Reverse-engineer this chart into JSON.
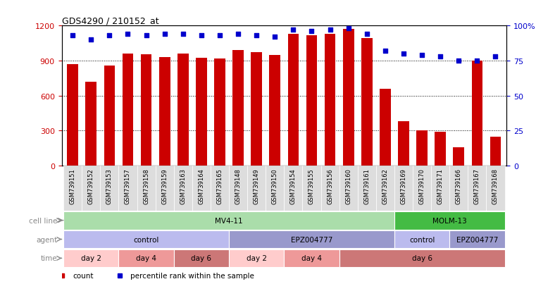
{
  "title": "GDS4290 / 210152_at",
  "samples": [
    "GSM739151",
    "GSM739152",
    "GSM739153",
    "GSM739157",
    "GSM739158",
    "GSM739159",
    "GSM739163",
    "GSM739164",
    "GSM739165",
    "GSM739148",
    "GSM739149",
    "GSM739150",
    "GSM739154",
    "GSM739155",
    "GSM739156",
    "GSM739160",
    "GSM739161",
    "GSM739162",
    "GSM739169",
    "GSM739170",
    "GSM739171",
    "GSM739166",
    "GSM739167",
    "GSM739168"
  ],
  "counts": [
    870,
    720,
    860,
    960,
    955,
    930,
    960,
    925,
    920,
    990,
    970,
    950,
    1130,
    1120,
    1130,
    1170,
    1090,
    660,
    380,
    300,
    290,
    155,
    900,
    245
  ],
  "percentiles": [
    93,
    90,
    93,
    94,
    93,
    94,
    94,
    93,
    93,
    94,
    93,
    92,
    97,
    96,
    97,
    98,
    94,
    82,
    80,
    79,
    78,
    75,
    75,
    78
  ],
  "ylim_left": [
    0,
    1200
  ],
  "ylim_right": [
    0,
    100
  ],
  "yticks_left": [
    0,
    300,
    600,
    900,
    1200
  ],
  "yticks_right": [
    0,
    25,
    50,
    75,
    100
  ],
  "bar_color": "#cc0000",
  "dot_color": "#0000cc",
  "grid_color": "#000000",
  "cell_line_mv411_color": "#aaddaa",
  "cell_line_molm13_color": "#44bb44",
  "agent_control_color": "#bbbbee",
  "agent_epz_color": "#9999cc",
  "time_day2_color": "#ffcccc",
  "time_day4_color": "#ee9999",
  "time_day6_color": "#cc7777",
  "xlabel_color": "#cc0000",
  "right_axis_color": "#0000cc",
  "bar_width": 0.6,
  "background_color": "#ffffff",
  "xticklabel_bg": "#dddddd",
  "row_label_color": "#888888",
  "segments": {
    "cell_line": [
      {
        "label": "MV4-11",
        "start": 0,
        "end": 17,
        "color": "#aaddaa"
      },
      {
        "label": "MOLM-13",
        "start": 18,
        "end": 23,
        "color": "#44bb44"
      }
    ],
    "agent": [
      {
        "label": "control",
        "start": 0,
        "end": 8,
        "color": "#bbbbee"
      },
      {
        "label": "EPZ004777",
        "start": 9,
        "end": 17,
        "color": "#9999cc"
      },
      {
        "label": "control",
        "start": 18,
        "end": 20,
        "color": "#bbbbee"
      },
      {
        "label": "EPZ004777",
        "start": 21,
        "end": 23,
        "color": "#9999cc"
      }
    ],
    "time": [
      {
        "label": "day 2",
        "start": 0,
        "end": 2,
        "color": "#ffcccc"
      },
      {
        "label": "day 4",
        "start": 3,
        "end": 5,
        "color": "#ee9999"
      },
      {
        "label": "day 6",
        "start": 6,
        "end": 8,
        "color": "#cc7777"
      },
      {
        "label": "day 2",
        "start": 9,
        "end": 11,
        "color": "#ffcccc"
      },
      {
        "label": "day 4",
        "start": 12,
        "end": 14,
        "color": "#ee9999"
      },
      {
        "label": "day 6",
        "start": 15,
        "end": 23,
        "color": "#cc7777"
      }
    ]
  },
  "row_labels": [
    "cell line",
    "agent",
    "time"
  ],
  "legend": [
    {
      "color": "#cc0000",
      "label": "count"
    },
    {
      "color": "#0000cc",
      "label": "percentile rank within the sample"
    }
  ]
}
